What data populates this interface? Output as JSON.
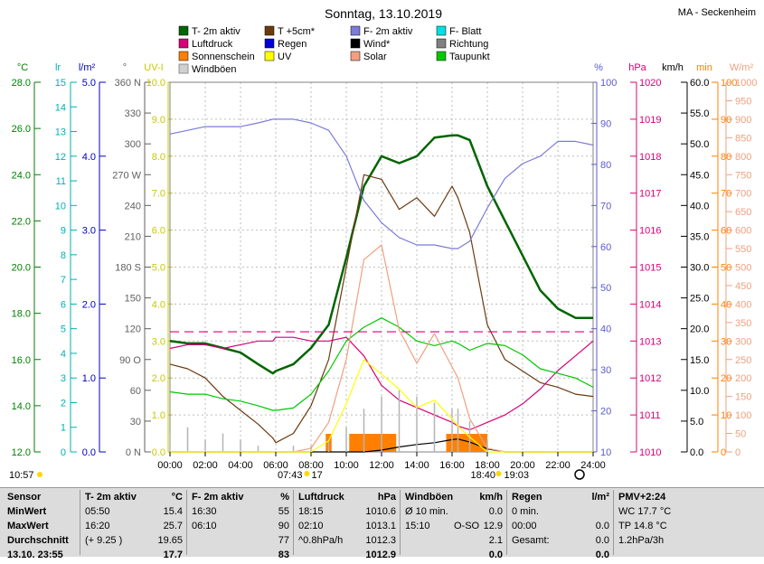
{
  "header": {
    "title": "Sonntag, 13.10.2019",
    "station": "MA - Seckenheim"
  },
  "legend": [
    {
      "label": "T- 2m aktiv",
      "color": "#006400",
      "swatch": "line",
      "name": "legend-t2m"
    },
    {
      "label": "T +5cm*",
      "color": "#6b3a10",
      "swatch": "line",
      "name": "legend-t5cm"
    },
    {
      "label": "F- 2m aktiv",
      "color": "#7b7bd8",
      "swatch": "line",
      "name": "legend-f2m"
    },
    {
      "label": "F- Blatt",
      "color": "#00e0e0",
      "swatch": "line",
      "name": "legend-fblatt"
    },
    {
      "label": "Luftdruck",
      "color": "#d8007a",
      "swatch": "line",
      "name": "legend-luftdruck"
    },
    {
      "label": "Regen",
      "color": "#0000d8",
      "swatch": "line",
      "name": "legend-regen"
    },
    {
      "label": "Wind*",
      "color": "#000000",
      "swatch": "line",
      "name": "legend-wind"
    },
    {
      "label": "Richtung",
      "color": "#808080",
      "swatch": "line",
      "name": "legend-richtung"
    },
    {
      "label": "Sonnenschein",
      "color": "#ff8000",
      "swatch": "line",
      "name": "legend-sonnenschein"
    },
    {
      "label": "UV",
      "color": "#ffff00",
      "swatch": "line",
      "name": "legend-uv"
    },
    {
      "label": "Solar",
      "color": "#f0a080",
      "swatch": "line",
      "name": "legend-solar"
    },
    {
      "label": "Taupunkt",
      "color": "#00c800",
      "swatch": "line",
      "name": "legend-taupunkt"
    },
    {
      "label": "Windböen",
      "color": "#b4b4b4",
      "swatch": "box",
      "name": "legend-windboeen"
    }
  ],
  "axes": [
    {
      "name": "temp",
      "unit": "°C",
      "color": "#008000",
      "ticks": [
        "12.0",
        "14.0",
        "16.0",
        "18.0",
        "20.0",
        "22.0",
        "24.0",
        "26.0",
        "28.0"
      ]
    },
    {
      "name": "lr",
      "unit": "lr",
      "color": "#00b0b0",
      "ticks": [
        "0",
        "1",
        "2",
        "3",
        "4",
        "5",
        "6",
        "7",
        "8",
        "9",
        "10",
        "11",
        "12",
        "13",
        "14",
        "15"
      ]
    },
    {
      "name": "rain",
      "unit": "l/m²",
      "color": "#0000c0",
      "ticks": [
        "0.0",
        "1.0",
        "2.0",
        "3.0",
        "4.0",
        "5.0"
      ]
    },
    {
      "name": "dir",
      "unit": "°",
      "color": "#606060",
      "ticks": [
        "0 N",
        "30",
        "60",
        "90 O",
        "120",
        "150",
        "180 S",
        "210",
        "240",
        "270 W",
        "300",
        "330",
        "360 N"
      ]
    },
    {
      "name": "uv",
      "unit": "UV-I",
      "color": "#c8c800",
      "ticks": [
        "0.0",
        "1.0",
        "2.0",
        "3.0",
        "4.0",
        "5.0",
        "6.0",
        "7.0",
        "8.0",
        "9.0",
        "10.0"
      ]
    },
    {
      "name": "hum",
      "unit": "%",
      "color": "#5a5ad0",
      "ticks": [
        "10",
        "20",
        "30",
        "40",
        "50",
        "60",
        "70",
        "80",
        "90",
        "100"
      ]
    },
    {
      "name": "press",
      "unit": "hPa",
      "color": "#d8007a",
      "ticks": [
        "1010",
        "1011",
        "1012",
        "1013",
        "1014",
        "1015",
        "1016",
        "1017",
        "1018",
        "1019",
        "1020"
      ]
    },
    {
      "name": "wind",
      "unit": "km/h",
      "color": "#000000",
      "ticks": [
        "0.0",
        "5.0",
        "10.0",
        "15.0",
        "20.0",
        "25.0",
        "30.0",
        "35.0",
        "40.0",
        "45.0",
        "50.0",
        "55.0",
        "60.0"
      ]
    },
    {
      "name": "min",
      "unit": "min",
      "color": "#ff8000",
      "ticks": [
        "0",
        "10",
        "20",
        "30",
        "40",
        "50",
        "60",
        "70",
        "80",
        "90",
        "100"
      ]
    },
    {
      "name": "solar",
      "unit": "W/m²",
      "color": "#f0a080",
      "ticks": [
        "0",
        "50",
        "100",
        "150",
        "200",
        "250",
        "300",
        "350",
        "400",
        "450",
        "500",
        "550",
        "600",
        "650",
        "700",
        "750",
        "800",
        "850",
        "900",
        "950",
        "1000"
      ]
    }
  ],
  "x_ticks": [
    "00:00",
    "02:00",
    "04:00",
    "06:00",
    "08:00",
    "10:00",
    "12:00",
    "14:00",
    "16:00",
    "18:00",
    "20:00",
    "22:00",
    "24:00"
  ],
  "events": {
    "moonrise": "10:57",
    "sunrise": "07:43",
    "sunrise_suffix": "17",
    "sunset": "18:40",
    "moonset": "19:03"
  },
  "chart_data": {
    "type": "line",
    "title": "Sonntag, 13.10.2019",
    "x": [
      "00:00",
      "01:00",
      "02:00",
      "03:00",
      "04:00",
      "05:00",
      "05:50",
      "06:00",
      "07:00",
      "08:00",
      "09:00",
      "10:00",
      "11:00",
      "12:00",
      "13:00",
      "14:00",
      "15:00",
      "16:00",
      "16:20",
      "17:00",
      "18:00",
      "19:00",
      "20:00",
      "21:00",
      "22:00",
      "23:00",
      "24:00"
    ],
    "xlim": [
      "00:00",
      "24:00"
    ],
    "series": [
      {
        "name": "T- 2m aktiv",
        "axis": "°C",
        "color": "#006400",
        "values": [
          16.8,
          16.7,
          16.7,
          16.5,
          16.3,
          15.8,
          15.4,
          15.5,
          15.8,
          16.5,
          17.5,
          20.4,
          23.5,
          24.8,
          24.5,
          24.8,
          25.6,
          25.7,
          25.7,
          25.5,
          23.5,
          22.0,
          20.5,
          19.0,
          18.2,
          17.8,
          17.8
        ]
      },
      {
        "name": "T +5cm*",
        "axis": "°C",
        "color": "#6b3a10",
        "values": [
          15.8,
          15.6,
          15.2,
          14.4,
          13.8,
          13.2,
          12.6,
          12.4,
          12.8,
          14.0,
          16.0,
          20.0,
          24.0,
          23.8,
          22.5,
          23.0,
          22.2,
          23.5,
          23.0,
          21.5,
          17.5,
          16.0,
          15.5,
          15.0,
          14.8,
          14.5,
          14.4
        ]
      },
      {
        "name": "F- 2m aktiv",
        "axis": "%",
        "color": "#7b7bd8",
        "values": [
          86,
          87,
          88,
          88,
          88,
          89,
          90,
          90,
          90,
          89,
          87,
          80,
          68,
          62,
          58,
          56,
          56,
          55,
          55,
          57,
          66,
          74,
          78,
          80,
          84,
          84,
          83
        ]
      },
      {
        "name": "Luftdruck",
        "axis": "hPa",
        "color": "#d8007a",
        "values": [
          1012.8,
          1012.9,
          1012.9,
          1012.8,
          1012.9,
          1013.0,
          1013.0,
          1013.1,
          1013.1,
          1013.0,
          1013.0,
          1013.1,
          1012.6,
          1011.8,
          1011.4,
          1011.2,
          1011.0,
          1010.8,
          1010.7,
          1010.6,
          1010.8,
          1011.0,
          1011.3,
          1011.7,
          1012.2,
          1012.6,
          1013.0
        ]
      },
      {
        "name": "Taupunkt",
        "axis": "°C",
        "color": "#00c800",
        "values": [
          14.6,
          14.5,
          14.5,
          14.3,
          14.2,
          14.0,
          13.8,
          13.8,
          13.9,
          14.5,
          15.5,
          16.8,
          17.4,
          17.8,
          17.4,
          16.8,
          16.6,
          16.8,
          16.7,
          16.4,
          16.7,
          16.6,
          16.2,
          15.6,
          15.4,
          15.2,
          14.8
        ]
      },
      {
        "name": "Wind*",
        "axis": "km/h",
        "color": "#000000",
        "values": [
          0,
          0,
          0,
          0,
          0,
          0,
          0,
          0,
          0,
          0,
          0,
          0,
          0,
          0.3,
          0.8,
          1.2,
          1.5,
          2.0,
          2.1,
          1.6,
          0.5,
          0,
          0,
          0,
          0,
          0,
          0
        ]
      },
      {
        "name": "Windböen",
        "axis": "km/h",
        "color": "#b4b4b4",
        "values": [
          3,
          4,
          2,
          3,
          2,
          1,
          0,
          0,
          1,
          1,
          2,
          4,
          7,
          9,
          10,
          9,
          8,
          7,
          7,
          5,
          2,
          0,
          0,
          0,
          0,
          0,
          0
        ]
      },
      {
        "name": "Solar",
        "axis": "W/m²",
        "color": "#f0a080",
        "values": [
          0,
          0,
          0,
          0,
          0,
          0,
          0,
          0,
          0,
          10,
          80,
          250,
          520,
          560,
          330,
          240,
          320,
          230,
          200,
          90,
          10,
          0,
          0,
          0,
          0,
          0,
          0
        ]
      },
      {
        "name": "UV",
        "axis": "UV-I",
        "color": "#ffff00",
        "values": [
          0,
          0,
          0,
          0,
          0,
          0,
          0,
          0,
          0,
          0,
          0.3,
          1.3,
          2.5,
          2.1,
          1.7,
          1.2,
          1.4,
          0.9,
          0.7,
          0.4,
          0,
          0,
          0,
          0,
          0,
          0,
          0
        ]
      }
    ],
    "reference_lines": [
      {
        "name": "Luftdruck Referenz",
        "axis": "hPa",
        "value": 1013.25,
        "style": "dashed",
        "color": "#d8007a"
      }
    ],
    "sunshine_bars": {
      "axis": "min",
      "color": "#ff8000",
      "intervals": [
        [
          "08:50",
          "09:10"
        ],
        [
          "10:10",
          "12:50"
        ],
        [
          "15:40",
          "18:00"
        ]
      ]
    }
  },
  "summary": {
    "columns": [
      {
        "h1": "Sensor",
        "h2": "",
        "rows": [
          [
            "MinWert",
            "",
            ""
          ],
          [
            "MaxWert",
            "",
            ""
          ],
          [
            "Durchschnitt",
            "",
            ""
          ],
          [
            "13.10. 23:55",
            "",
            ""
          ]
        ]
      },
      {
        "h1": "T- 2m aktiv",
        "h2": "°C",
        "rows": [
          [
            "05:50",
            "",
            "15.4"
          ],
          [
            "16:20",
            "",
            "25.7"
          ],
          [
            "(+ 9.25 )",
            "",
            "19.65"
          ],
          [
            "",
            "",
            "17.7"
          ]
        ]
      },
      {
        "h1": "F- 2m aktiv",
        "h2": "%",
        "rows": [
          [
            "16:30",
            "",
            "55"
          ],
          [
            "06:10",
            "",
            "90"
          ],
          [
            "",
            "",
            "77"
          ],
          [
            "",
            "",
            "83"
          ]
        ]
      },
      {
        "h1": "Luftdruck",
        "h2": "hPa",
        "rows": [
          [
            "18:15",
            "",
            "1010.6"
          ],
          [
            "02:10",
            "",
            "1013.1"
          ],
          [
            "^0.8hPa/h",
            "",
            "1012.3"
          ],
          [
            "",
            "",
            "1012.9"
          ]
        ]
      },
      {
        "h1": "Windböen",
        "h2": "km/h",
        "rows": [
          [
            "Ø 10 min.",
            "",
            "0.0"
          ],
          [
            "15:10",
            "O-SO",
            "12.9"
          ],
          [
            "",
            "",
            "2.1"
          ],
          [
            "",
            "",
            "0.0"
          ]
        ]
      },
      {
        "h1": "Regen",
        "h2": "l/m²",
        "rows": [
          [
            "0 min.",
            "",
            ""
          ],
          [
            "00:00",
            "",
            "0.0"
          ],
          [
            "Gesamt:",
            "",
            "0.0"
          ],
          [
            "",
            "",
            "0.0"
          ]
        ]
      },
      {
        "h1": "PMV+2:24",
        "h2": "",
        "rows": [
          [
            "WC 17.7 °C",
            "",
            ""
          ],
          [
            "TP 14.8 °C",
            "",
            ""
          ],
          [
            "1.2hPa/3h",
            "",
            ""
          ],
          [
            "",
            "",
            ""
          ]
        ]
      }
    ]
  }
}
